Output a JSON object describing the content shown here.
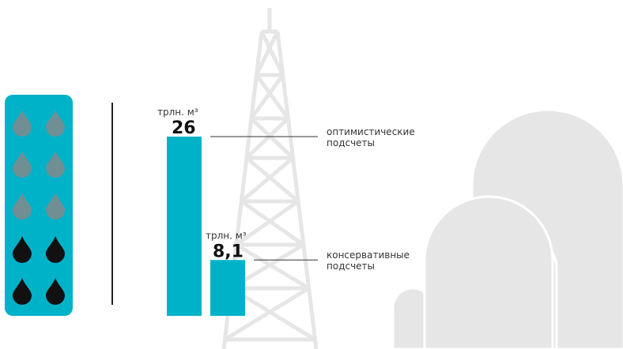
{
  "chart_data": {
    "type": "bar",
    "unit": "трлн. м³",
    "categories": [
      "оптимистические подсчеты",
      "консервативные подсчеты"
    ],
    "values": [
      26,
      8.1
    ],
    "value_labels": [
      "26",
      "8,1"
    ],
    "color": "#00b2c8"
  }
}
